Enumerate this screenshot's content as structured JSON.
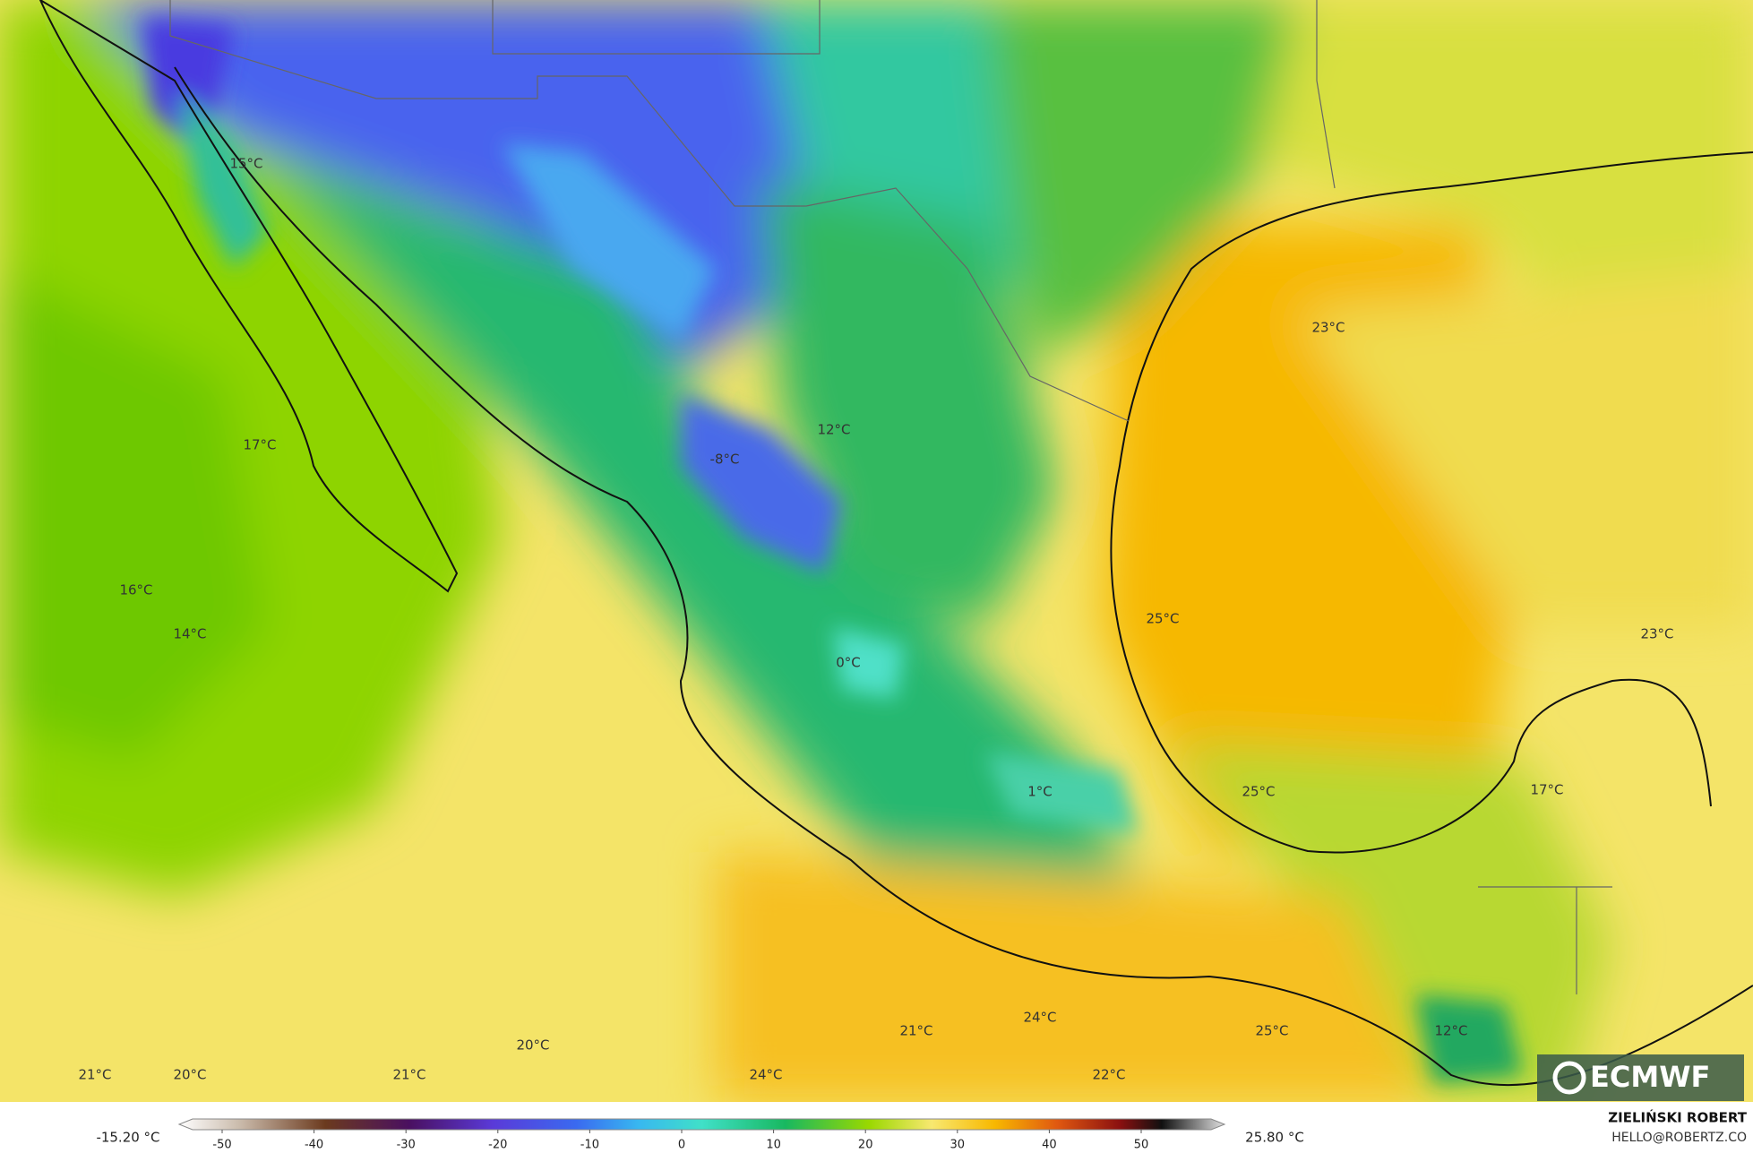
{
  "map": {
    "labels": [
      "15°C",
      "17°C",
      "16°C",
      "14°C",
      "12°C",
      "-8°C",
      "0°C",
      "1°C",
      "23°C",
      "25°C",
      "23°C",
      "25°C",
      "17°C",
      "12°C",
      "25°C",
      "21°C",
      "24°C",
      "20°C",
      "21°C",
      "20°C",
      "21°C",
      "24°C",
      "22°C"
    ]
  },
  "logo": "ECMWF",
  "colorbar": {
    "min_label": "-15.20 °C",
    "max_label": "25.80 °C",
    "ticks": [
      -50,
      -40,
      -30,
      -20,
      -10,
      0,
      10,
      20,
      30,
      40,
      50
    ]
  },
  "credit": {
    "author": "ZIELIŃSKI ROBERT",
    "contact": "HELLO@ROBERTZ.CO"
  }
}
